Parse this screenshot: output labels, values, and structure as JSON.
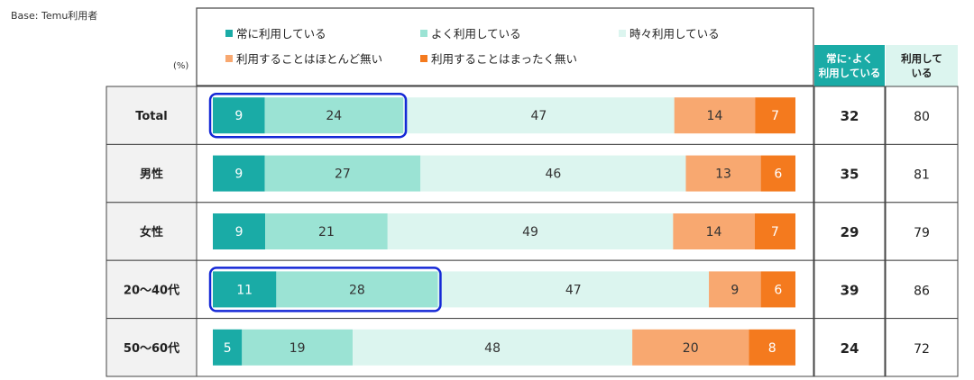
{
  "base": "Base: Temu利用者",
  "unit": "(%)",
  "headers": {
    "sum_line1": "常に･よく",
    "sum_line2": "利用している",
    "use_line1": "利用して",
    "use_line2": "いる"
  },
  "colors": {
    "always": "#1aaba6",
    "often": "#9be3d4",
    "sometimes": "#dcf5ef",
    "rarely": "#f8a870",
    "never": "#f47a1e",
    "sum_header_bg": "#1aaba6",
    "use_header_bg": "#dcf5ef",
    "highlight": "#1428d6",
    "row_label_bg": "#f2f2f2"
  },
  "chart_data": {
    "type": "bar",
    "stacked": true,
    "orientation": "horizontal",
    "categories": [
      "Total",
      "男性",
      "女性",
      "20～40代",
      "50～60代"
    ],
    "series": [
      {
        "name": "常に利用している",
        "values": [
          9,
          9,
          9,
          11,
          5
        ]
      },
      {
        "name": "よく利用している",
        "values": [
          24,
          27,
          21,
          28,
          19
        ]
      },
      {
        "name": "時々利用している",
        "values": [
          47,
          46,
          49,
          47,
          48
        ]
      },
      {
        "name": "利用することはほとんど無い",
        "values": [
          14,
          13,
          14,
          9,
          20
        ]
      },
      {
        "name": "利用することはまったく無い",
        "values": [
          7,
          6,
          7,
          6,
          8
        ]
      }
    ],
    "sum_column": [
      32,
      35,
      29,
      39,
      24
    ],
    "use_column": [
      80,
      81,
      79,
      86,
      72
    ],
    "highlighted_rows": [
      0,
      3
    ],
    "highlighted_series": [
      0,
      1
    ],
    "legend_position": "top"
  }
}
